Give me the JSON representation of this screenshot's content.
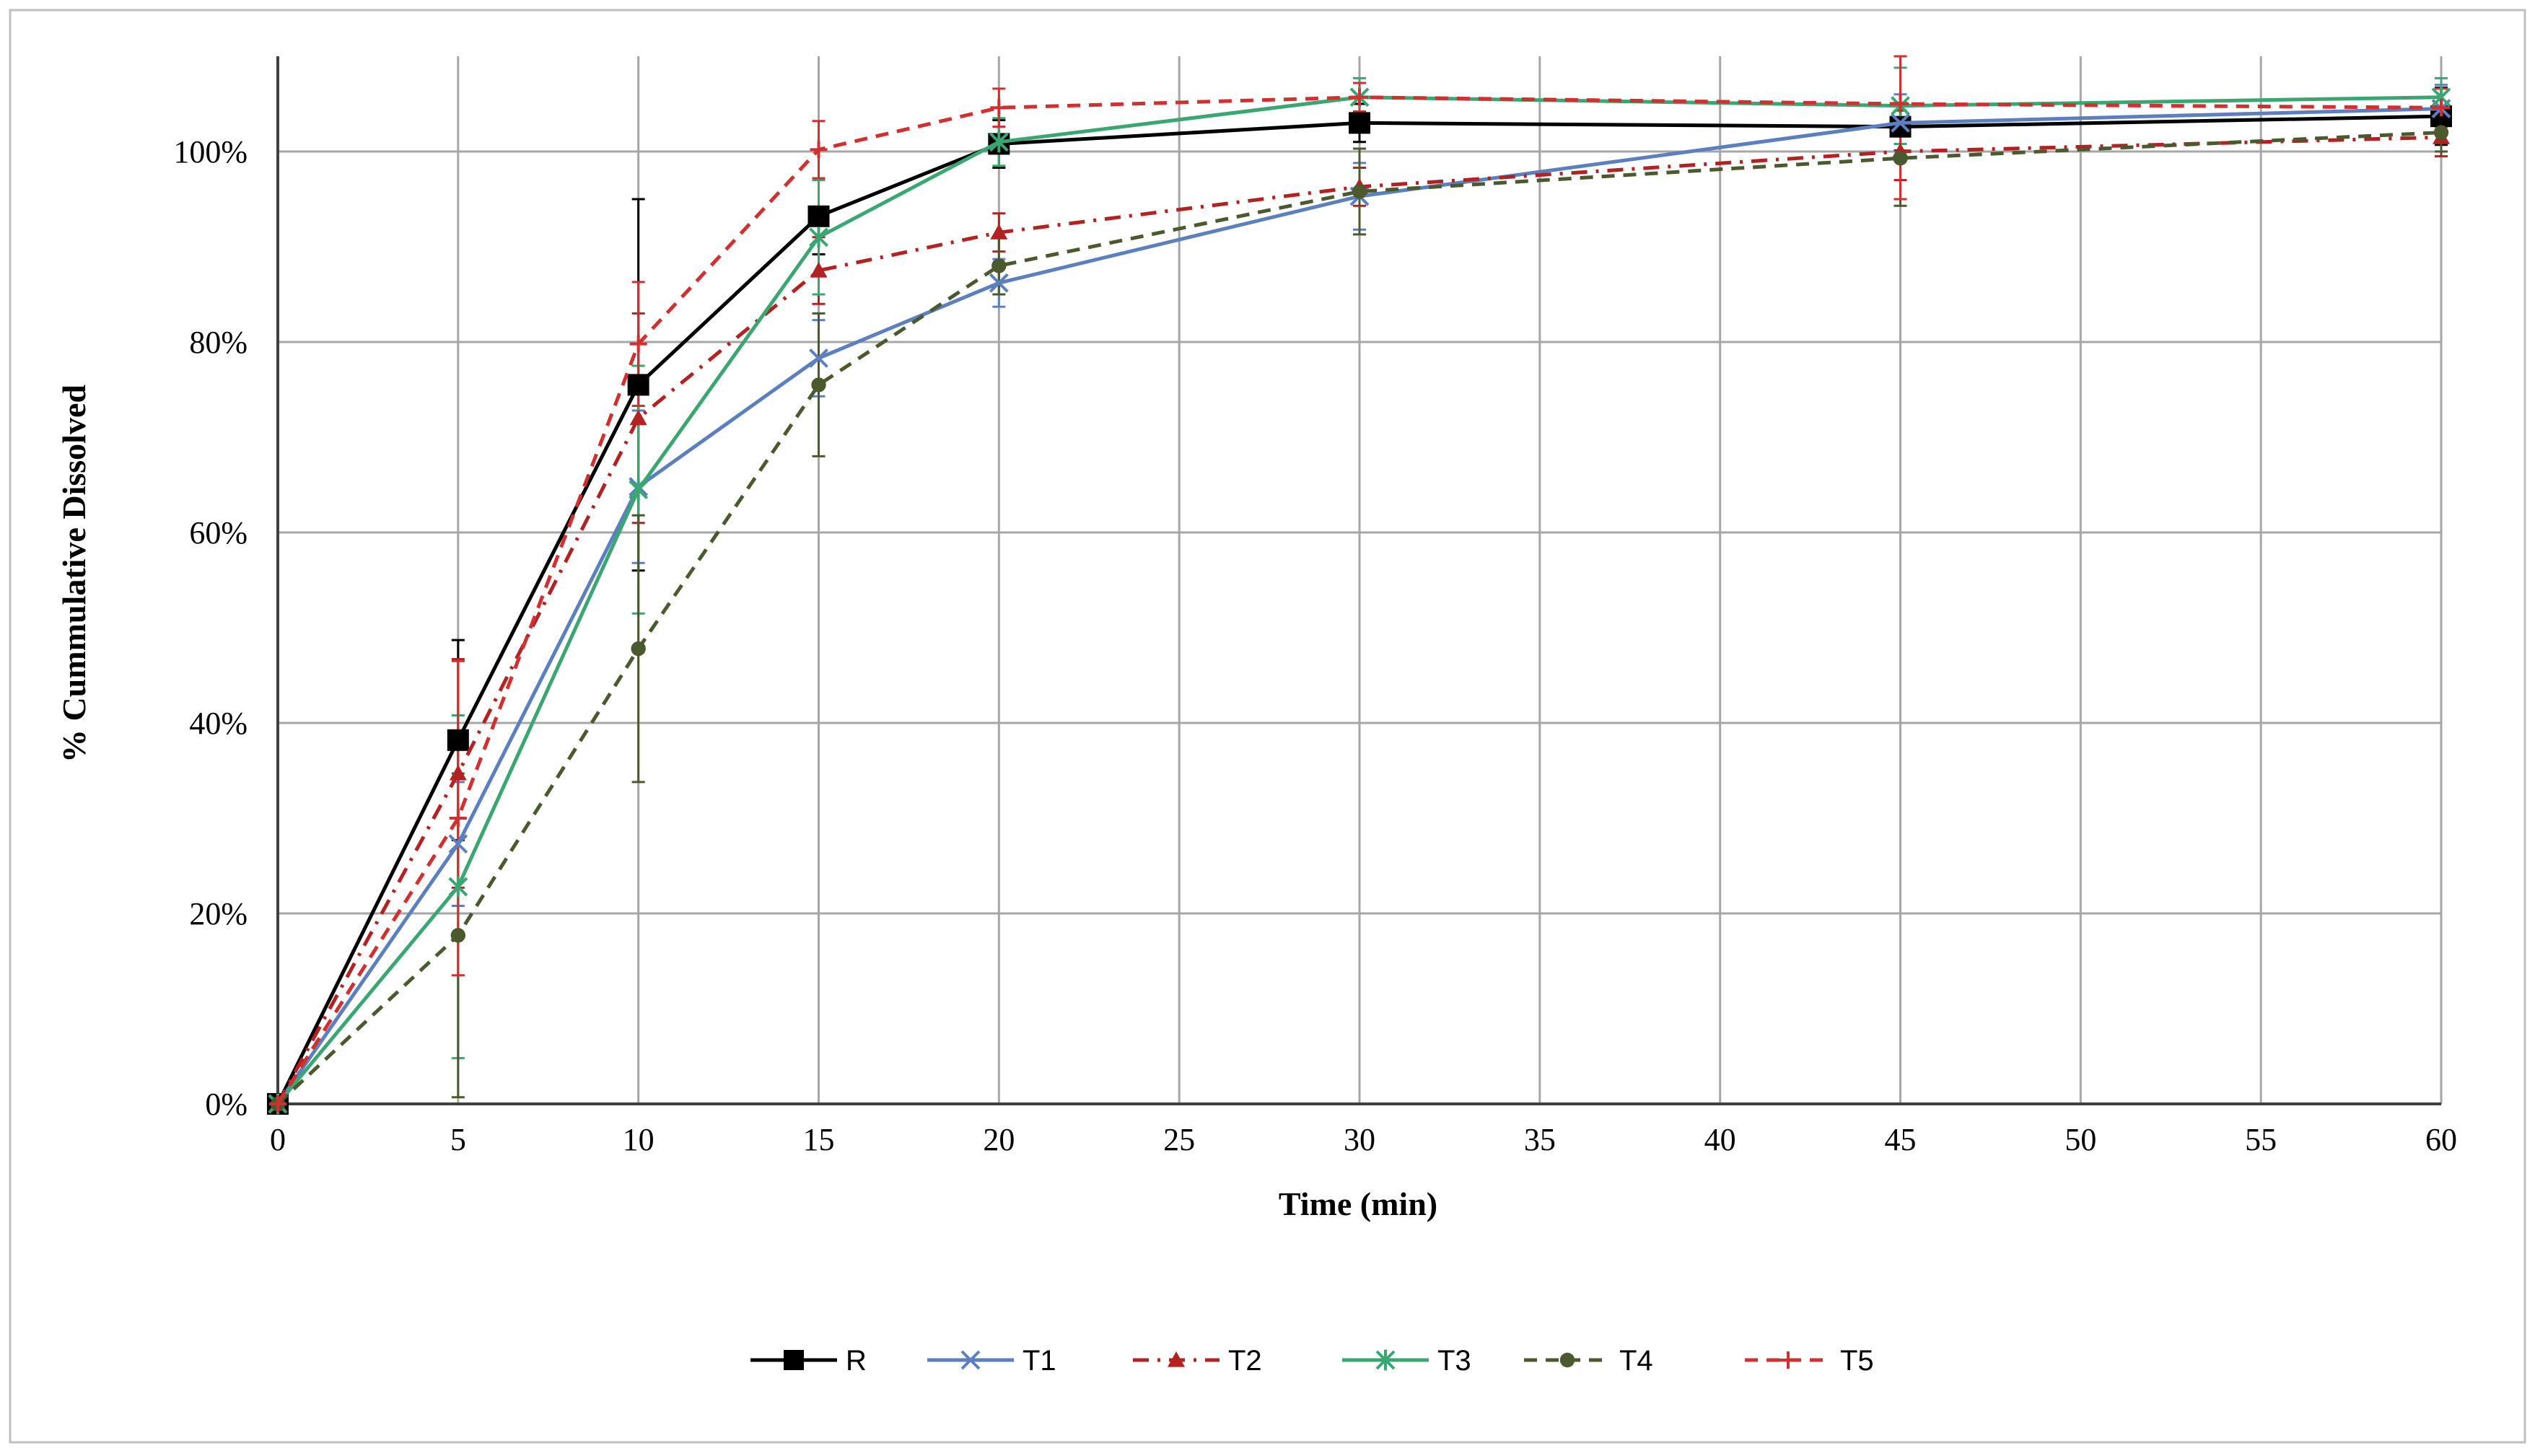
{
  "chart_data": {
    "type": "line",
    "xlabel": "Time (min)",
    "ylabel": "% Cummulative Dissolved",
    "xlim": [
      0,
      60
    ],
    "ylim": [
      0,
      110
    ],
    "x_ticks": [
      0,
      5,
      10,
      15,
      20,
      25,
      30,
      35,
      40,
      45,
      50,
      55,
      60
    ],
    "x_tick_labels": [
      "0",
      "5",
      "10",
      "15",
      "20",
      "25",
      "30",
      "35",
      "40",
      "45",
      "50",
      "55",
      "60"
    ],
    "y_ticks": [
      0,
      20,
      40,
      60,
      80,
      100
    ],
    "y_tick_labels": [
      "0%",
      "20%",
      "40%",
      "60%",
      "80%",
      "100%"
    ],
    "grid": true,
    "legend_position": "bottom",
    "x": [
      0,
      5,
      10,
      15,
      20,
      30,
      45,
      60
    ],
    "series": [
      {
        "name": "R",
        "color": "#000000",
        "dash": "solid",
        "marker": "square",
        "values": [
          0,
          38.2,
          75.5,
          93.2,
          100.8,
          103.0,
          102.6,
          103.7
        ],
        "errors": [
          0,
          10.5,
          19.5,
          4,
          2.5,
          2,
          2.5,
          3
        ]
      },
      {
        "name": "T1",
        "color": "#5b7fbf",
        "dash": "solid",
        "marker": "x",
        "values": [
          0,
          27.3,
          64.8,
          78.3,
          86.2,
          95.3,
          103.0,
          104.5
        ],
        "errors": [
          0,
          6.5,
          8,
          4,
          2.5,
          3.5,
          3,
          2.5
        ]
      },
      {
        "name": "T2",
        "color": "#b22222",
        "dash": "dashdot",
        "marker": "triangle",
        "values": [
          0,
          34.7,
          72.0,
          87.5,
          91.5,
          96.3,
          100.0,
          101.5
        ],
        "errors": [
          0,
          12,
          11,
          3.5,
          2,
          2,
          3,
          2
        ]
      },
      {
        "name": "T3",
        "color": "#3aa672",
        "dash": "solid",
        "marker": "star",
        "values": [
          0,
          22.8,
          64.5,
          91.0,
          101.0,
          105.7,
          104.8,
          105.7
        ],
        "errors": [
          0,
          18,
          13,
          6,
          2.5,
          2,
          4,
          2
        ]
      },
      {
        "name": "T4",
        "color": "#4b5a2e",
        "dash": "dash",
        "marker": "circle",
        "values": [
          0,
          17.7,
          47.8,
          75.5,
          88.0,
          95.8,
          99.3,
          102.0
        ],
        "errors": [
          0,
          17,
          14,
          7.5,
          3,
          4.5,
          5,
          2
        ]
      },
      {
        "name": "T5",
        "color": "#d03030",
        "dash": "dash",
        "marker": "plus",
        "values": [
          0,
          30.0,
          79.8,
          100.2,
          104.6,
          105.7,
          105.0,
          104.6
        ],
        "errors": [
          0,
          16.5,
          6.5,
          3,
          2,
          1.5,
          10,
          2
        ]
      }
    ]
  }
}
